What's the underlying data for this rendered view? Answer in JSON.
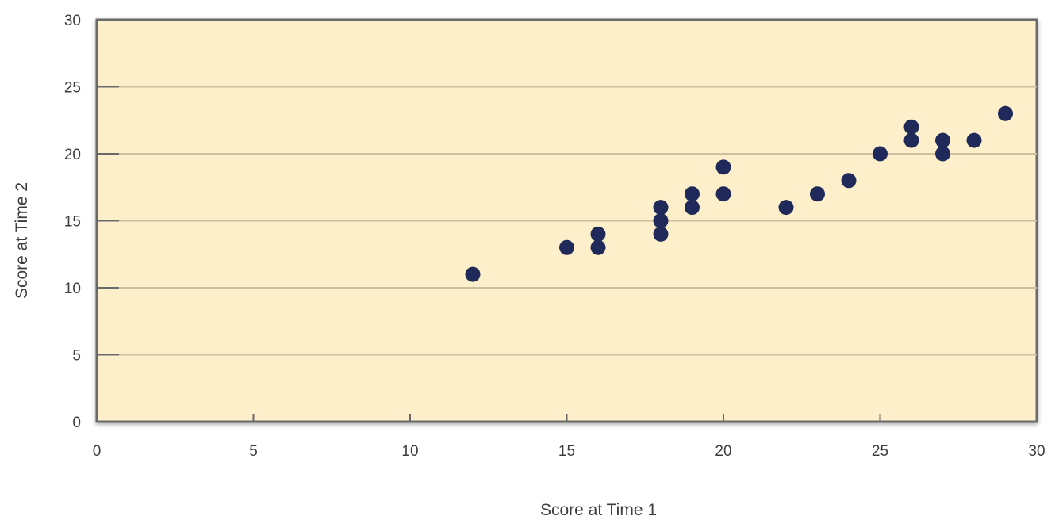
{
  "chart_data": {
    "type": "scatter",
    "title": "",
    "xlabel": "Score at Time 1",
    "ylabel": "Score at Time 2",
    "xlim": [
      0,
      30
    ],
    "ylim": [
      0,
      30
    ],
    "xticks": [
      0,
      5,
      10,
      15,
      20,
      25,
      30
    ],
    "yticks": [
      0,
      5,
      10,
      15,
      20,
      25,
      30
    ],
    "grid": "horizontal",
    "legend": "none",
    "colors": {
      "plot_background": "#fcefc9",
      "plot_border": "#6a6a6a",
      "gridline": "#cdbf9f",
      "point": "#1f2a5a"
    },
    "series": [
      {
        "points": [
          {
            "x": 12,
            "y": 11
          },
          {
            "x": 15,
            "y": 13
          },
          {
            "x": 16,
            "y": 13
          },
          {
            "x": 16,
            "y": 14
          },
          {
            "x": 18,
            "y": 14
          },
          {
            "x": 18,
            "y": 15
          },
          {
            "x": 18,
            "y": 16
          },
          {
            "x": 19,
            "y": 16
          },
          {
            "x": 19,
            "y": 17
          },
          {
            "x": 20,
            "y": 17
          },
          {
            "x": 20,
            "y": 19
          },
          {
            "x": 22,
            "y": 16
          },
          {
            "x": 23,
            "y": 17
          },
          {
            "x": 24,
            "y": 18
          },
          {
            "x": 25,
            "y": 20
          },
          {
            "x": 26,
            "y": 21
          },
          {
            "x": 26,
            "y": 22
          },
          {
            "x": 27,
            "y": 20
          },
          {
            "x": 27,
            "y": 21
          },
          {
            "x": 28,
            "y": 21
          },
          {
            "x": 29,
            "y": 23
          }
        ]
      }
    ]
  }
}
